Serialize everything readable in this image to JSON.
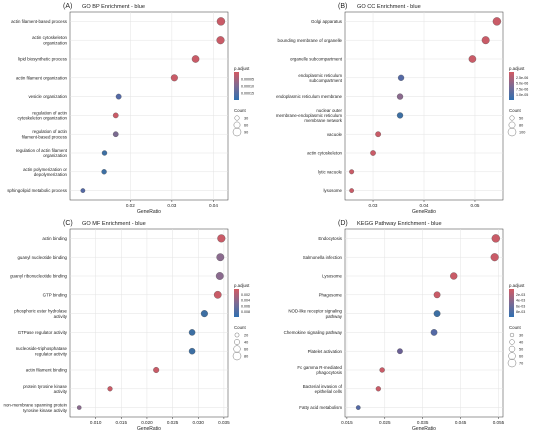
{
  "chart_data": [
    {
      "id": "A",
      "type": "scatter",
      "label": "(A)",
      "title": "GO BP Enrichment - blue",
      "xlabel": "GeneRatio",
      "xlim": [
        0.0055,
        0.0435
      ],
      "xticks": [
        0.02,
        0.03,
        0.04
      ],
      "xtick_labels": [
        "0.02",
        "0.03",
        "0.04"
      ],
      "grid": true,
      "color_legend": {
        "title": "p.adjust",
        "ticks": [
          "0.00005",
          "0.00010",
          "0.00015"
        ]
      },
      "size_legend": {
        "title": "Count",
        "labels": [
          "30",
          "60",
          "90"
        ]
      },
      "points": [
        {
          "term": "actin filament-based process",
          "x": 0.0418,
          "color": "#c95b67",
          "size": 1.0
        },
        {
          "term": "actin cytoskeleton organization",
          "x": 0.0417,
          "color": "#c95b67",
          "size": 0.95
        },
        {
          "term": "lipid biosynthetic process",
          "x": 0.0357,
          "color": "#c95b67",
          "size": 0.85
        },
        {
          "term": "actin filament organization",
          "x": 0.0306,
          "color": "#c95b67",
          "size": 0.75
        },
        {
          "term": "vesicle organization",
          "x": 0.0172,
          "color": "#5469a5",
          "size": 0.5
        },
        {
          "term": "regulation of actin cytoskeleton organization",
          "x": 0.0165,
          "color": "#c95b67",
          "size": 0.48
        },
        {
          "term": "regulation of actin filament-based process",
          "x": 0.0165,
          "color": "#7a6a90",
          "size": 0.48
        },
        {
          "term": "regulation of actin filament organization",
          "x": 0.0138,
          "color": "#3d6fa3",
          "size": 0.42
        },
        {
          "term": "actin polymerization or depolymerization",
          "x": 0.0137,
          "color": "#3d6fa3",
          "size": 0.42
        },
        {
          "term": "sphingolipid metabolic process",
          "x": 0.0086,
          "color": "#5469a5",
          "size": 0.3
        }
      ]
    },
    {
      "id": "B",
      "type": "scatter",
      "label": "(B)",
      "title": "GO CC Enrichment - blue",
      "xlabel": "GeneRatio",
      "xlim": [
        0.0245,
        0.0555
      ],
      "xticks": [
        0.03,
        0.04,
        0.05
      ],
      "xtick_labels": [
        "0.03",
        "0.04",
        "0.05"
      ],
      "grid": true,
      "color_legend": {
        "title": "p.adjust",
        "ticks": [
          "2.5e-06",
          "5.0e-06",
          "7.5e-06",
          "1.0e-05"
        ]
      },
      "size_legend": {
        "title": "Count",
        "labels": [
          "50",
          "80",
          "100"
        ]
      },
      "points": [
        {
          "term": "Golgi apparatus",
          "x": 0.0543,
          "color": "#c95b67",
          "size": 1.0
        },
        {
          "term": "bounding membrane of organelle",
          "x": 0.0521,
          "color": "#c95b67",
          "size": 0.92
        },
        {
          "term": "organelle subcompartment",
          "x": 0.0495,
          "color": "#c95b67",
          "size": 0.85
        },
        {
          "term": "endoplasmic reticulum subcompartment",
          "x": 0.0355,
          "color": "#5469a5",
          "size": 0.6
        },
        {
          "term": "endoplasmic reticulum membrane",
          "x": 0.0353,
          "color": "#8a6a8e",
          "size": 0.6
        },
        {
          "term": "nuclear outer membrane-endoplasmic reticulum membrane network",
          "x": 0.0353,
          "color": "#3d6fa3",
          "size": 0.6
        },
        {
          "term": "vacuole",
          "x": 0.031,
          "color": "#c95b67",
          "size": 0.5
        },
        {
          "term": "actin cytoskeleton",
          "x": 0.03,
          "color": "#c95b67",
          "size": 0.48
        },
        {
          "term": "lytic vacuole",
          "x": 0.0258,
          "color": "#c95b67",
          "size": 0.35
        },
        {
          "term": "lysosome",
          "x": 0.0258,
          "color": "#c95b67",
          "size": 0.3
        }
      ]
    },
    {
      "id": "C",
      "type": "scatter",
      "label": "(C)",
      "title": "GO MF Enrichment - blue",
      "xlabel": "GeneRatio",
      "xlim": [
        0.005,
        0.0358
      ],
      "xticks": [
        0.01,
        0.015,
        0.02,
        0.025,
        0.03,
        0.035
      ],
      "xtick_labels": [
        "0.010",
        "0.015",
        "0.020",
        "0.025",
        "0.030",
        "0.035"
      ],
      "grid": true,
      "color_legend": {
        "title": "p.adjust",
        "ticks": [
          "0.002",
          "0.004",
          "0.006",
          "0.008"
        ]
      },
      "size_legend": {
        "title": "Count",
        "labels": [
          "20",
          "40",
          "60",
          "80"
        ]
      },
      "points": [
        {
          "term": "actin binding",
          "x": 0.0345,
          "color": "#c95b67",
          "size": 0.95
        },
        {
          "term": "guanyl nucleotide binding",
          "x": 0.0343,
          "color": "#8a6a8e",
          "size": 0.9
        },
        {
          "term": "guanyl ribonucleotide binding",
          "x": 0.0342,
          "color": "#8a6a8e",
          "size": 0.9
        },
        {
          "term": "GTP binding",
          "x": 0.0338,
          "color": "#c95b67",
          "size": 0.88
        },
        {
          "term": "phosphoric ester hydrolase activity",
          "x": 0.0312,
          "color": "#3d6fa3",
          "size": 0.75
        },
        {
          "term": "GTPase regulator activity",
          "x": 0.0288,
          "color": "#3d6fa3",
          "size": 0.65
        },
        {
          "term": "nucleoside-triphosphatase regulator activity",
          "x": 0.0288,
          "color": "#3d6fa3",
          "size": 0.65
        },
        {
          "term": "actin filament binding",
          "x": 0.0218,
          "color": "#c95b67",
          "size": 0.55
        },
        {
          "term": "protein tyrosine kinase activity",
          "x": 0.0128,
          "color": "#c95b67",
          "size": 0.38
        },
        {
          "term": "non-membrane spanning protein tyrosine kinase activity",
          "x": 0.0068,
          "color": "#8a6a8e",
          "size": 0.25
        }
      ]
    },
    {
      "id": "D",
      "type": "scatter",
      "label": "(D)",
      "title": "KEGG Pathway Enrichment - blue",
      "xlabel": "GeneRatio",
      "xlim": [
        0.0145,
        0.0562
      ],
      "xticks": [
        0.015,
        0.025,
        0.035,
        0.045,
        0.055
      ],
      "xtick_labels": [
        "0.015",
        "0.025",
        "0.035",
        "0.045",
        "0.055"
      ],
      "grid": true,
      "color_legend": {
        "title": "p.adjust",
        "ticks": [
          "2e-03",
          "4e-03",
          "6e-03",
          "8e-03"
        ]
      },
      "size_legend": {
        "title": "Count",
        "labels": [
          "30",
          "40",
          "50",
          "60",
          "70"
        ]
      },
      "points": [
        {
          "term": "Endocytosis",
          "x": 0.0543,
          "color": "#c95b67",
          "size": 1.0
        },
        {
          "term": "Salmonella infection",
          "x": 0.054,
          "color": "#c95b67",
          "size": 0.95
        },
        {
          "term": "Lysosome",
          "x": 0.0432,
          "color": "#c95b67",
          "size": 0.8
        },
        {
          "term": "Phagosome",
          "x": 0.0388,
          "color": "#c95b67",
          "size": 0.7
        },
        {
          "term": "NOD-like receptor signaling pathway",
          "x": 0.0388,
          "color": "#3d6fa3",
          "size": 0.7
        },
        {
          "term": "Chemokine signaling pathway",
          "x": 0.038,
          "color": "#5469a5",
          "size": 0.68
        },
        {
          "term": "Platelet activation",
          "x": 0.029,
          "color": "#6a5f95",
          "size": 0.5
        },
        {
          "term": "Fc gamma R-mediated phagocytosis",
          "x": 0.0243,
          "color": "#c95b67",
          "size": 0.42
        },
        {
          "term": "Bacterial invasion of epithelial cells",
          "x": 0.0233,
          "color": "#c95b67",
          "size": 0.4
        },
        {
          "term": "Fatty acid metabolism",
          "x": 0.018,
          "color": "#5469a5",
          "size": 0.3
        }
      ]
    }
  ]
}
